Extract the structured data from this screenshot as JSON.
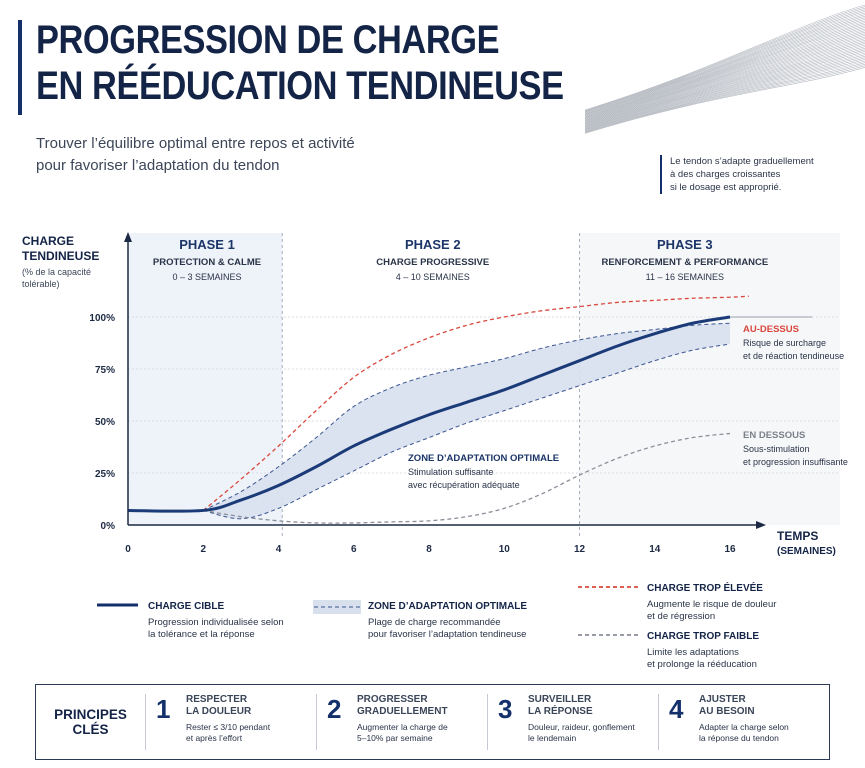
{
  "header": {
    "title_line1": "PROGRESSION DE CHARGE",
    "title_line2": "EN RÉÉDUCATION TENDINEUSE",
    "subtitle_line1": "Trouver l’équilibre optimal entre repos et activité",
    "subtitle_line2": "pour favoriser l’adaptation du tendon",
    "note_line1": "Le tendon s’adapte graduellement",
    "note_line2": "à des charges croissantes",
    "note_line3": "si le dosage est approprié."
  },
  "colors": {
    "navy": "#14306b",
    "target_line": "#1a3a78",
    "zone_fill": "#d8e0ee",
    "too_high": "#d9473c",
    "too_low": "#8a8f99",
    "phase1_bg": "#eef2f9"
  },
  "chart_data": {
    "type": "line",
    "ylabel_line1": "CHARGE",
    "ylabel_line2": "TENDINEUSE",
    "ylabel_sub1": "(% de la capacité",
    "ylabel_sub2": "tolérable)",
    "xlabel_line1": "TEMPS",
    "xlabel_line2": "(SEMAINES)",
    "xlim": [
      0,
      16
    ],
    "ylim": [
      0,
      100
    ],
    "x_ticks": [
      "0",
      "2",
      "4",
      "6",
      "8",
      "10",
      "12",
      "14",
      "16"
    ],
    "y_ticks": [
      "0%",
      "25%",
      "50%",
      "75%",
      "100%"
    ],
    "grid": true,
    "phases": [
      {
        "name": "PHASE 1",
        "sub": "PROTECTION & CALME",
        "range": "0 – 3 SEMAINES"
      },
      {
        "name": "PHASE 2",
        "sub": "CHARGE PROGRESSIVE",
        "range": "4 – 10 SEMAINES"
      },
      {
        "name": "PHASE 3",
        "sub": "RENFORCEMENT & PERFORMANCE",
        "range": "11 – 16 SEMAINES"
      }
    ],
    "series": [
      {
        "name": "CHARGE CIBLE",
        "x": [
          0,
          2,
          3,
          4,
          5,
          6,
          7,
          8,
          9,
          10,
          11,
          12,
          13,
          14,
          15,
          16
        ],
        "y": [
          7,
          7,
          12,
          19,
          28,
          38,
          46,
          53,
          59,
          65,
          72,
          79,
          86,
          92,
          97,
          100
        ]
      },
      {
        "name": "ZONE D’ADAPTATION OPTIMALE upper",
        "x": [
          2,
          3,
          4,
          5,
          6,
          7,
          8,
          9,
          10,
          11,
          12,
          13,
          14,
          15,
          16
        ],
        "y": [
          7,
          16,
          28,
          42,
          57,
          66,
          72,
          76,
          80,
          85,
          89,
          92,
          94,
          96,
          97
        ]
      },
      {
        "name": "ZONE D’ADAPTATION OPTIMALE lower",
        "x": [
          2,
          3,
          4,
          5,
          6,
          7,
          8,
          9,
          10,
          11,
          12,
          13,
          14,
          15,
          16
        ],
        "y": [
          7,
          3,
          8,
          17,
          26,
          35,
          42,
          49,
          55,
          61,
          67,
          73,
          79,
          84,
          87
        ]
      },
      {
        "name": "CHARGE TROP ÉLEVÉE",
        "x": [
          2,
          3,
          4,
          5,
          6,
          7,
          8,
          9,
          10,
          11,
          12,
          13,
          14,
          15,
          16,
          16.5
        ],
        "y": [
          7,
          22,
          38,
          55,
          71,
          82,
          90,
          96,
          100,
          103,
          105,
          107,
          108,
          109,
          109.5,
          110
        ]
      },
      {
        "name": "CHARGE TROP FAIBLE",
        "x": [
          2,
          3,
          4,
          5,
          6,
          7,
          8,
          9,
          10,
          11,
          12,
          13,
          14,
          15,
          16
        ],
        "y": [
          7,
          4,
          2,
          1,
          1,
          1.5,
          2,
          4,
          8,
          15,
          24,
          32,
          38,
          42,
          44
        ]
      }
    ],
    "annotations": {
      "zone_title": "ZONE D’ADAPTATION OPTIMALE",
      "zone_desc1": "Stimulation suffisante",
      "zone_desc2": "avec récupération adéquate",
      "above_title": "AU-DESSUS",
      "above_desc1": "Risque de surcharge",
      "above_desc2": "et de réaction tendineuse",
      "below_title": "EN DESSOUS",
      "below_desc1": "Sous-stimulation",
      "below_desc2": "et progression insuffisante"
    }
  },
  "legend": {
    "target": {
      "title": "CHARGE CIBLE",
      "desc1": "Progression individualisée selon",
      "desc2": "la tolérance et la réponse"
    },
    "zone": {
      "title": "ZONE D’ADAPTATION OPTIMALE",
      "desc1": "Plage de charge recommandée",
      "desc2": "pour favoriser l’adaptation tendineuse"
    },
    "high": {
      "title": "CHARGE TROP ÉLEVÉE",
      "desc1": "Augmente le risque de douleur",
      "desc2": "et de régression"
    },
    "low": {
      "title": "CHARGE TROP FAIBLE",
      "desc1": "Limite les adaptations",
      "desc2": "et prolonge la rééducation"
    }
  },
  "principles": {
    "heading": "PRINCIPES CLÉS",
    "items": [
      {
        "num": "1",
        "title1": "RESPECTER",
        "title2": "LA DOULEUR",
        "desc1": "Rester ≤ 3/10 pendant",
        "desc2": "et après l’effort"
      },
      {
        "num": "2",
        "title1": "PROGRESSER",
        "title2": "GRADUELLEMENT",
        "desc1": "Augmenter la charge de",
        "desc2": "5–10% par semaine"
      },
      {
        "num": "3",
        "title1": "SURVEILLER",
        "title2": "LA RÉPONSE",
        "desc1": "Douleur, raideur, gonflement",
        "desc2": "le lendemain"
      },
      {
        "num": "4",
        "title1": "AJUSTER",
        "title2": "AU BESOIN",
        "desc1": "Adapter la charge selon",
        "desc2": "la réponse du tendon"
      }
    ]
  }
}
